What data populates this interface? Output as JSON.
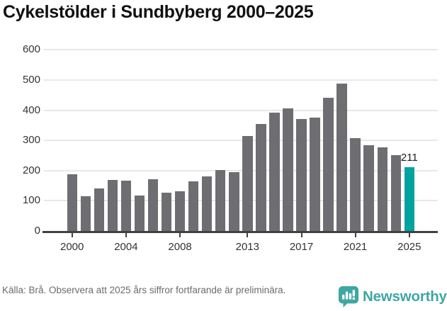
{
  "title": "Cykelstölder i Sundbyberg 2000–2025",
  "footer": {
    "source_note": "Källa: Brå. Observera att 2025 års siffror fortfarande är preliminära."
  },
  "branding": {
    "logo_text": "Newsworthy",
    "logo_icon": "newsworthy-speech-bubble-bar-chart-icon",
    "logo_color": "#3ea7a2"
  },
  "colors": {
    "bar_default": "#6e6e72",
    "bar_highlight": "#00a3a0",
    "gridline": "#e8e8e8",
    "axis": "#414141",
    "tick_label": "#333333",
    "annotation": "#1d1d1d",
    "title": "#111111",
    "footer_text": "#6b6b6b"
  },
  "chart_data": {
    "type": "bar",
    "title": "Cykelstölder i Sundbyberg 2000–2025",
    "x": [
      2000,
      2001,
      2002,
      2003,
      2004,
      2005,
      2006,
      2007,
      2008,
      2009,
      2010,
      2011,
      2012,
      2013,
      2014,
      2015,
      2016,
      2017,
      2018,
      2019,
      2020,
      2021,
      2022,
      2023,
      2024,
      2025
    ],
    "values": [
      187,
      116,
      142,
      170,
      167,
      117,
      172,
      126,
      132,
      164,
      181,
      202,
      195,
      314,
      355,
      393,
      405,
      370,
      376,
      442,
      487,
      307,
      283,
      276,
      250,
      211
    ],
    "highlight_year": 2025,
    "annotation": {
      "year": 2025,
      "text": "211"
    },
    "xticks_labeled": [
      2000,
      2004,
      2008,
      2013,
      2017,
      2021,
      2025
    ],
    "yticks": [
      0,
      100,
      200,
      300,
      400,
      500,
      600
    ],
    "ylim": [
      0,
      600
    ],
    "xlabel": "",
    "ylabel": "",
    "grid": "horizontal",
    "legend": "none"
  }
}
